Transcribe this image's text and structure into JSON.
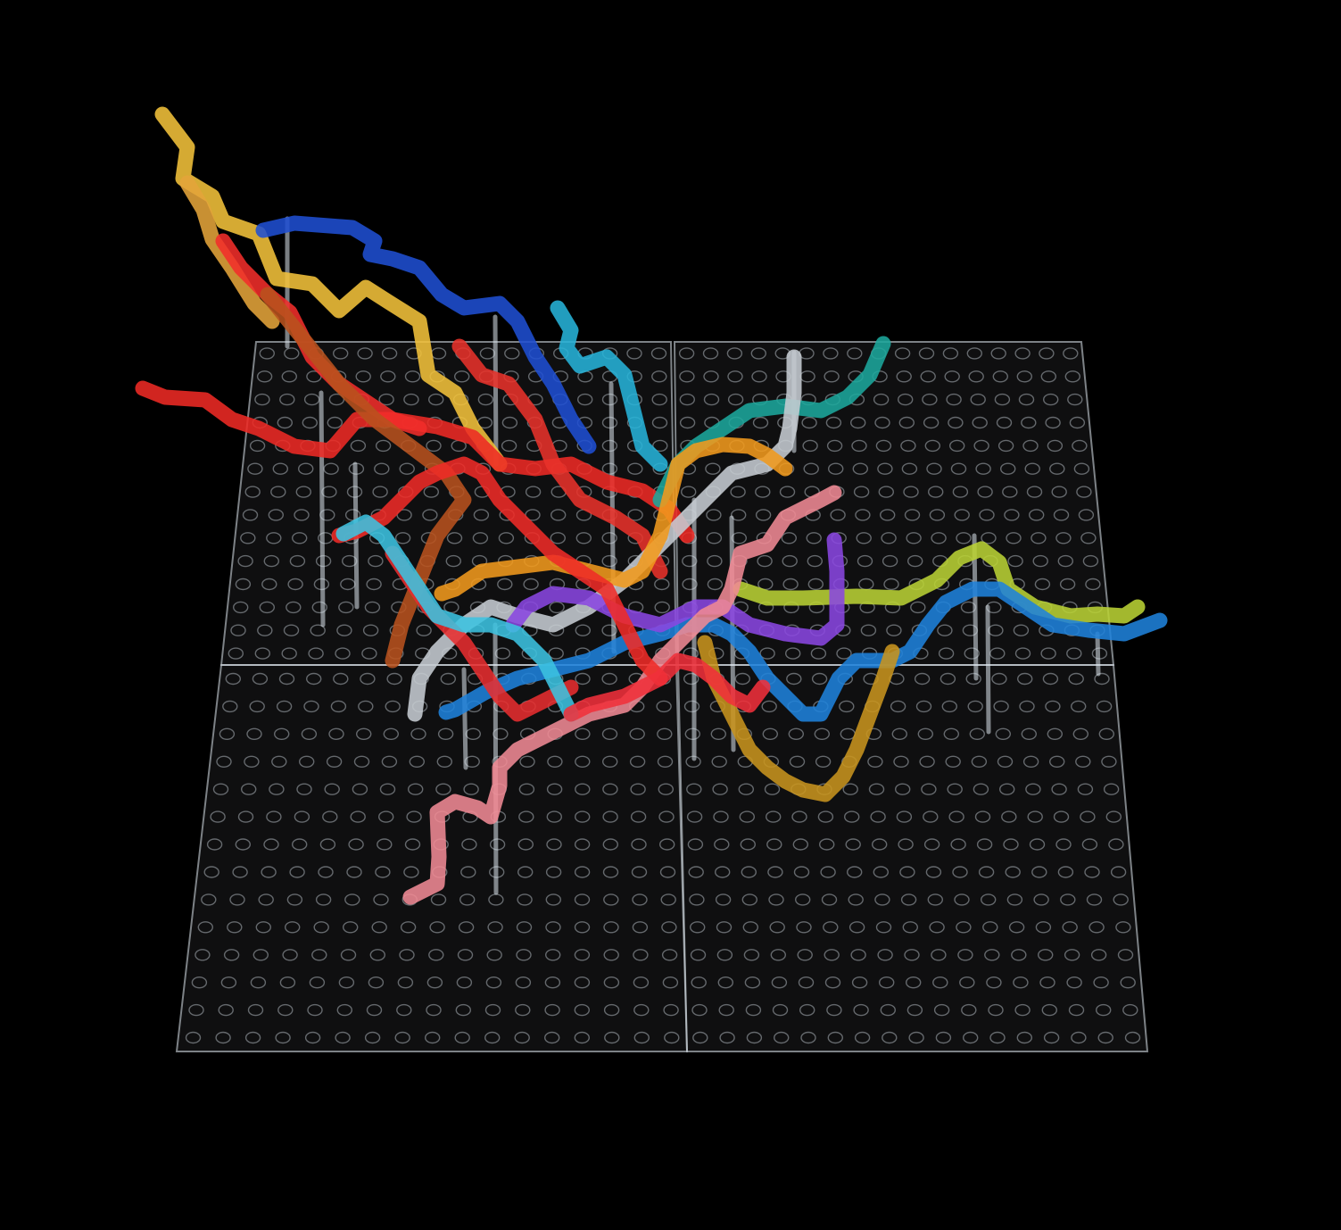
{
  "image": {
    "background_color": "#000000",
    "base": {
      "panel_fill": "#b9c3cc",
      "panel_stroke": "#dfe7ee",
      "peg_color": "#cfd8df",
      "rows_per_panel": 14,
      "cols_per_panel": 17,
      "panels": [
        "top-left-panel",
        "top-right-panel",
        "bottom-left-panel",
        "bottom-right-panel"
      ]
    },
    "tubes": [
      {
        "name": "yellow-tube",
        "color": "#f2c23a"
      },
      {
        "name": "amber-tube",
        "color": "#e4a43a"
      },
      {
        "name": "dark-blue-tube",
        "color": "#1f4fd1"
      },
      {
        "name": "red-tube-1",
        "color": "#ee2a24"
      },
      {
        "name": "red-tube-2",
        "color": "#f12e2a"
      },
      {
        "name": "brown-tube",
        "color": "#b8521e"
      },
      {
        "name": "cyan-tube",
        "color": "#27b3d8"
      },
      {
        "name": "teal-tube",
        "color": "#1da79c"
      },
      {
        "name": "grey-tube",
        "color": "#c6ccd1"
      },
      {
        "name": "orange-tube",
        "color": "#f19a1c"
      },
      {
        "name": "lime-tube",
        "color": "#b9d234"
      },
      {
        "name": "blue-tube",
        "color": "#1f82db"
      },
      {
        "name": "purple-tube",
        "color": "#8a47e0"
      },
      {
        "name": "pink-tube",
        "color": "#f08a94"
      },
      {
        "name": "gold-tube",
        "color": "#c8941e"
      }
    ]
  }
}
